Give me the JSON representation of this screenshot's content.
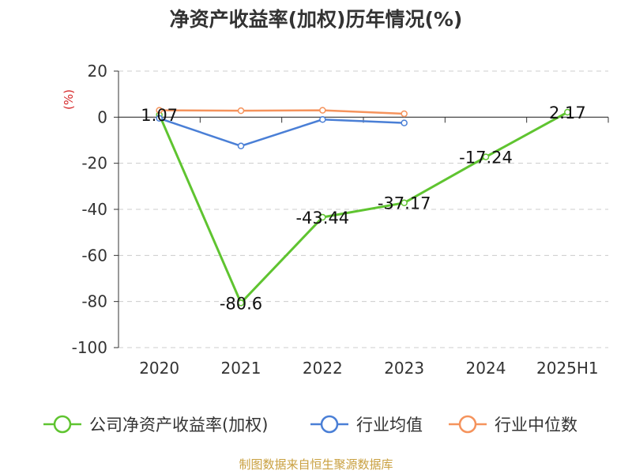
{
  "chart_data": {
    "type": "line",
    "title": "净资产收益率(加权)历年情况(%)",
    "unit_label": "(%)",
    "categories": [
      "2020",
      "2021",
      "2022",
      "2023",
      "2024",
      "2025H1"
    ],
    "ylim": [
      -100,
      20
    ],
    "yticks": [
      "20",
      "0",
      "-20",
      "-40",
      "-60",
      "-80",
      "-100"
    ],
    "grid": true,
    "legend_position": "bottom",
    "series": [
      {
        "name": "公司净资产收益率(加权)",
        "color": "#5fc430",
        "values": [
          1.07,
          -80.6,
          -43.44,
          -37.17,
          -17.24,
          2.17
        ],
        "labels": [
          "1.07",
          "-80.6",
          "-43.44",
          "-37.17",
          "-17.24",
          "2.17"
        ]
      },
      {
        "name": "行业均值",
        "color": "#4a7fd6",
        "values": [
          -0.5,
          -12.5,
          -1.0,
          -2.5,
          null,
          null
        ]
      },
      {
        "name": "行业中位数",
        "color": "#f5935c",
        "values": [
          3.0,
          2.8,
          3.0,
          1.5,
          null,
          null
        ]
      }
    ]
  },
  "source": "制图数据来自恒生聚源数据库"
}
